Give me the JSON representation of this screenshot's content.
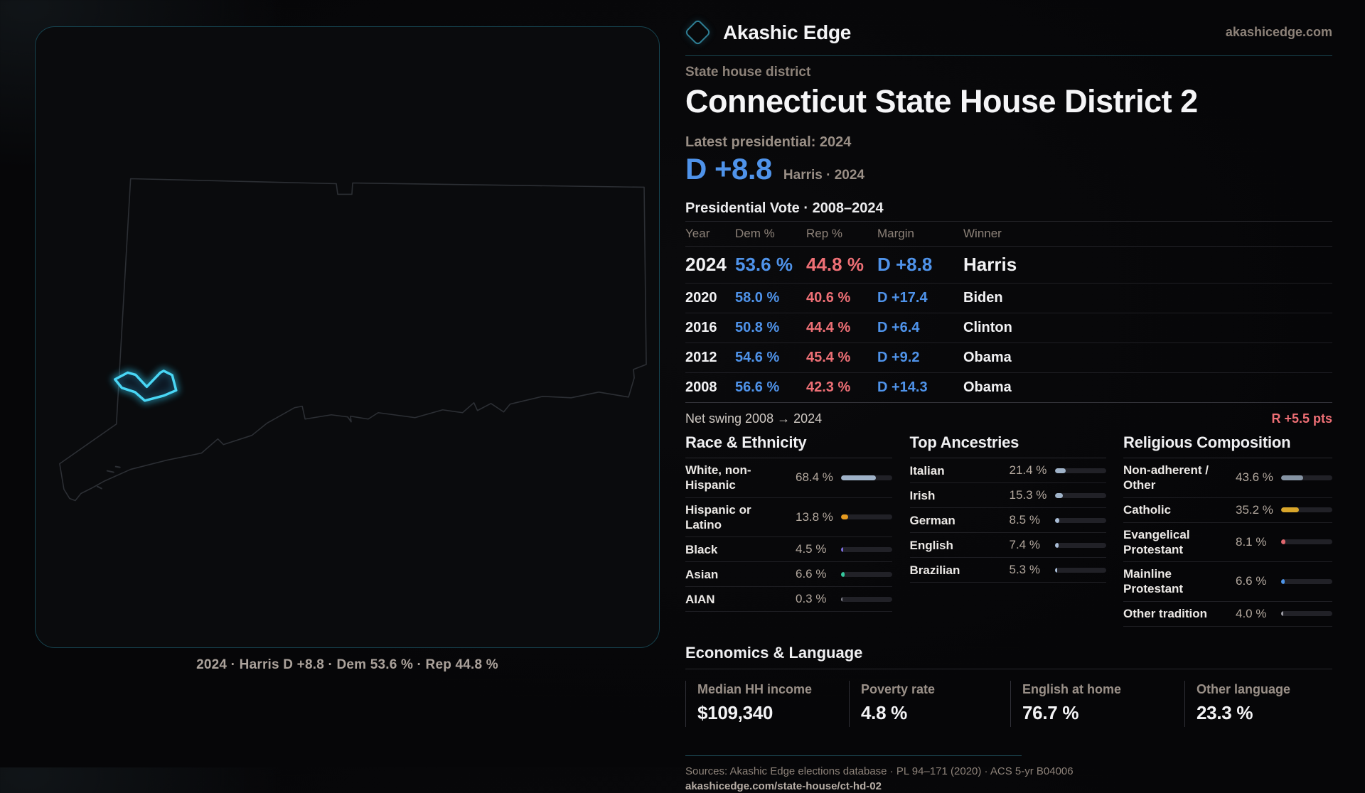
{
  "brand": {
    "name": "Akashic Edge",
    "domain": "akashicedge.com"
  },
  "page": {
    "eyebrow": "State house district",
    "title": "Connecticut State House District 2"
  },
  "latest": {
    "label": "Latest presidential: 2024",
    "value": "D +8.8",
    "detail": "Harris · 2024"
  },
  "vote_table": {
    "title": "Presidential Vote · 2008–2024",
    "columns": [
      "Year",
      "Dem %",
      "Rep %",
      "Margin",
      "Winner"
    ],
    "rows": [
      {
        "year": "2024",
        "dem": "53.6 %",
        "rep": "44.8 %",
        "margin": "D +8.8",
        "winner": "Harris"
      },
      {
        "year": "2020",
        "dem": "58.0 %",
        "rep": "40.6 %",
        "margin": "D +17.4",
        "winner": "Biden"
      },
      {
        "year": "2016",
        "dem": "50.8 %",
        "rep": "44.4 %",
        "margin": "D +6.4",
        "winner": "Clinton"
      },
      {
        "year": "2012",
        "dem": "54.6 %",
        "rep": "45.4 %",
        "margin": "D +9.2",
        "winner": "Obama"
      },
      {
        "year": "2008",
        "dem": "56.6 %",
        "rep": "42.3 %",
        "margin": "D +14.3",
        "winner": "Obama"
      }
    ]
  },
  "net_swing": {
    "label": "Net swing 2008 → 2024",
    "value": "R +5.5 pts"
  },
  "demographics": {
    "groups": [
      {
        "title": "Race & Ethnicity",
        "rows": [
          {
            "label": "White, non-Hispanic",
            "value": "68.4 %",
            "pct": 68.4,
            "color": "#9fb2c8"
          },
          {
            "label": "Hispanic or Latino",
            "value": "13.8 %",
            "pct": 13.8,
            "color": "#e69b20"
          },
          {
            "label": "Black",
            "value": "4.5 %",
            "pct": 4.5,
            "color": "#7b6cdc"
          },
          {
            "label": "Asian",
            "value": "6.6 %",
            "pct": 6.6,
            "color": "#35c79d"
          },
          {
            "label": "AIAN",
            "value": "0.3 %",
            "pct": 0.3,
            "color": "#8a8a95"
          }
        ]
      },
      {
        "title": "Top Ancestries",
        "rows": [
          {
            "label": "Italian",
            "value": "21.4 %",
            "pct": 21.4,
            "color": "#9fb2c8"
          },
          {
            "label": "Irish",
            "value": "15.3 %",
            "pct": 15.3,
            "color": "#9fb2c8"
          },
          {
            "label": "German",
            "value": "8.5 %",
            "pct": 8.5,
            "color": "#a9bdd6"
          },
          {
            "label": "English",
            "value": "7.4 %",
            "pct": 7.4,
            "color": "#a9bdd6"
          },
          {
            "label": "Brazilian",
            "value": "5.3 %",
            "pct": 5.3,
            "color": "#a9bdd6"
          }
        ]
      },
      {
        "title": "Religious Composition",
        "rows": [
          {
            "label": "Non-adherent / Other",
            "value": "43.6 %",
            "pct": 43.6,
            "color": "#8593a3"
          },
          {
            "label": "Catholic",
            "value": "35.2 %",
            "pct": 35.2,
            "color": "#d9a62b"
          },
          {
            "label": "Evangelical Protestant",
            "value": "8.1 %",
            "pct": 8.1,
            "color": "#e0666d"
          },
          {
            "label": "Mainline Protestant",
            "value": "6.6 %",
            "pct": 6.6,
            "color": "#4d94e8"
          },
          {
            "label": "Other tradition",
            "value": "4.0 %",
            "pct": 4.0,
            "color": "#9b9ba3"
          }
        ]
      }
    ]
  },
  "economics": {
    "title": "Economics & Language",
    "stats": [
      {
        "label": "Median HH income",
        "value": "$109,340"
      },
      {
        "label": "Poverty rate",
        "value": "4.8 %"
      },
      {
        "label": "English at home",
        "value": "76.7 %"
      },
      {
        "label": "Other language",
        "value": "23.3 %"
      }
    ]
  },
  "map": {
    "caption": "2024 · Harris D +8.8 · Dem 53.6 % · Rep 44.8 %"
  },
  "footer": {
    "sources": "Sources: Akashic Edge elections database · PL 94–171 (2020) · ACS 5-yr B04006",
    "permalink": "akashicedge.com/state-house/ct-hd-02"
  },
  "colors": {
    "dem": "#4f93ea",
    "rep": "#ed6f75",
    "accent": "#2fc3e8"
  }
}
